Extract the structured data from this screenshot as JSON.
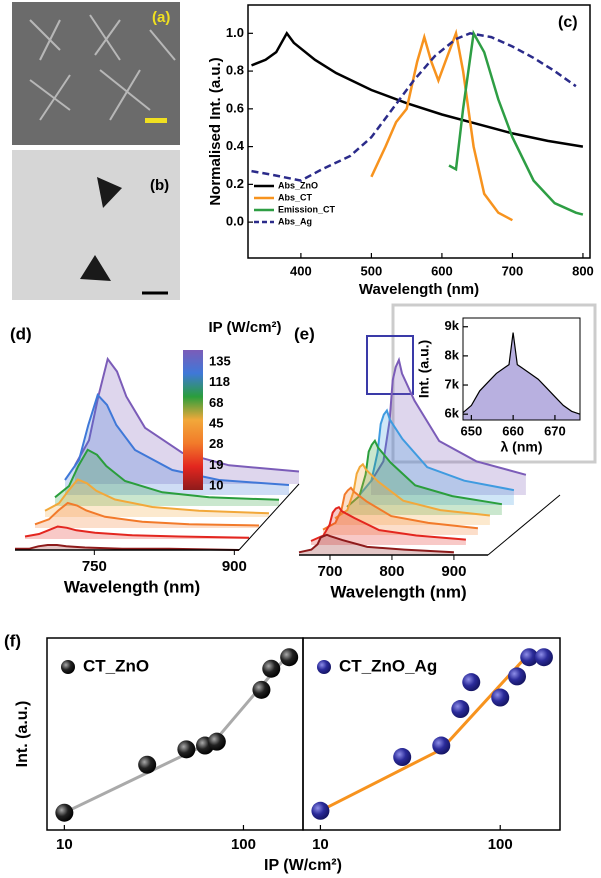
{
  "images": [
    {
      "label": "(a)"
    },
    {
      "label": "(b)"
    }
  ],
  "chart_data": [
    {
      "type": "line",
      "panel_label": "(c)",
      "xlabel": "Wavelength (nm)",
      "ylabel": "Normalised Int. (a.u.)",
      "xlim": [
        325,
        810
      ],
      "ylim": [
        -0.19,
        1.15
      ],
      "xticks": [
        400,
        500,
        600,
        700,
        800
      ],
      "yticks": [
        {
          "value": 0,
          "label": "0.0"
        },
        0.2,
        0.4,
        0.6,
        0.8,
        {
          "value": 1,
          "label": "1.0"
        }
      ],
      "legend": "lower left",
      "series": [
        {
          "name": "Abs_ZnO",
          "color": "#000000",
          "x": [
            330,
            350,
            365,
            380,
            390,
            420,
            450,
            500,
            550,
            600,
            650,
            700,
            750,
            800
          ],
          "values": [
            0.83,
            0.86,
            0.9,
            1.0,
            0.95,
            0.86,
            0.79,
            0.7,
            0.63,
            0.57,
            0.52,
            0.47,
            0.43,
            0.4
          ]
        },
        {
          "name": "Abs_CT",
          "color": "#f7931e",
          "x": [
            500,
            520,
            535,
            550,
            565,
            575,
            585,
            595,
            605,
            620,
            630,
            645,
            660,
            680,
            700
          ],
          "values": [
            0.24,
            0.4,
            0.53,
            0.6,
            0.85,
            0.98,
            0.85,
            0.75,
            0.85,
            1.0,
            0.8,
            0.4,
            0.15,
            0.05,
            0.01
          ]
        },
        {
          "name": "Emission_CT",
          "color": "#2e9e44",
          "x": [
            610,
            620,
            630,
            645,
            660,
            680,
            700,
            730,
            760,
            790,
            800
          ],
          "values": [
            0.3,
            0.28,
            0.6,
            1.0,
            0.9,
            0.65,
            0.45,
            0.22,
            0.1,
            0.05,
            0.04
          ]
        },
        {
          "name": "Abs_Ag",
          "color": "#2b2b8a",
          "dash": true,
          "x": [
            330,
            360,
            400,
            430,
            470,
            500,
            530,
            560,
            590,
            620,
            640,
            670,
            700,
            730,
            760,
            790
          ],
          "values": [
            0.27,
            0.25,
            0.22,
            0.28,
            0.35,
            0.45,
            0.6,
            0.75,
            0.88,
            0.97,
            1.0,
            0.98,
            0.93,
            0.87,
            0.8,
            0.72
          ]
        }
      ]
    },
    {
      "type": "waterfall",
      "panel_label": "(d)",
      "xlabel": "Wavelength (nm)",
      "colorbar_title": "IP (W/cm²)",
      "xlim": [
        665,
        905
      ],
      "xticks": [
        750,
        900
      ],
      "x": [
        665,
        680,
        690,
        700,
        710,
        720,
        740,
        780,
        830,
        905
      ],
      "series": [
        {
          "name": "135",
          "color": "#7b5cb8",
          "values": [
            0.15,
            0.35,
            0.7,
            1.0,
            0.9,
            0.7,
            0.45,
            0.25,
            0.15,
            0.1
          ]
        },
        {
          "name": "118",
          "color": "#3f78d8",
          "values": [
            0.12,
            0.28,
            0.56,
            0.8,
            0.72,
            0.56,
            0.36,
            0.2,
            0.12,
            0.08
          ]
        },
        {
          "name": "68",
          "color": "#2a9e3c",
          "values": [
            0.07,
            0.16,
            0.32,
            0.45,
            0.41,
            0.32,
            0.2,
            0.11,
            0.07,
            0.05
          ]
        },
        {
          "name": "45",
          "color": "#f2a83a",
          "values": [
            0.05,
            0.11,
            0.21,
            0.3,
            0.27,
            0.21,
            0.14,
            0.08,
            0.05,
            0.03
          ]
        },
        {
          "name": "28",
          "color": "#f27a2a",
          "values": [
            0.03,
            0.07,
            0.14,
            0.2,
            0.18,
            0.14,
            0.09,
            0.05,
            0.03,
            0.02
          ]
        },
        {
          "name": "19",
          "color": "#e3261f",
          "values": [
            0.02,
            0.04,
            0.07,
            0.1,
            0.09,
            0.07,
            0.05,
            0.03,
            0.02,
            0.01
          ]
        },
        {
          "name": "10",
          "color": "#8e1b1b",
          "values": [
            0.01,
            0.01,
            0.03,
            0.04,
            0.04,
            0.03,
            0.02,
            0.01,
            0.01,
            0
          ]
        }
      ]
    },
    {
      "type": "waterfall",
      "panel_label": "(e)",
      "xlabel": "Wavelength (nm)",
      "xlim": [
        650,
        955
      ],
      "xticks": [
        700,
        800,
        900
      ],
      "x": [
        650,
        670,
        680,
        685,
        690,
        695,
        700,
        720,
        760,
        820,
        900
      ],
      "series": [
        {
          "color": "#7b5cb8",
          "values": [
            0.1,
            0.25,
            0.55,
            0.85,
            0.95,
            1.0,
            0.9,
            0.7,
            0.4,
            0.25,
            0.15
          ]
        },
        {
          "color": "#3f9be0",
          "values": [
            0.07,
            0.18,
            0.39,
            0.6,
            0.67,
            0.7,
            0.63,
            0.49,
            0.28,
            0.18,
            0.11
          ]
        },
        {
          "color": "#2a9e3c",
          "values": [
            0.06,
            0.14,
            0.3,
            0.47,
            0.52,
            0.55,
            0.5,
            0.39,
            0.22,
            0.14,
            0.08
          ]
        },
        {
          "color": "#f2a83a",
          "values": [
            0.05,
            0.11,
            0.25,
            0.38,
            0.43,
            0.45,
            0.41,
            0.32,
            0.18,
            0.11,
            0.07
          ]
        },
        {
          "color": "#f27a2a",
          "values": [
            0.04,
            0.09,
            0.19,
            0.3,
            0.33,
            0.35,
            0.32,
            0.25,
            0.14,
            0.09,
            0.05
          ]
        },
        {
          "color": "#e3261f",
          "values": [
            0.03,
            0.07,
            0.15,
            0.24,
            0.27,
            0.28,
            0.25,
            0.2,
            0.11,
            0.07,
            0.04
          ]
        },
        {
          "color": "#8e1b1b",
          "values": [
            0.02,
            0.04,
            0.08,
            0.13,
            0.14,
            0.15,
            0.14,
            0.11,
            0.06,
            0.04,
            0.02
          ]
        }
      ]
    },
    {
      "type": "area",
      "xlabel": "λ (nm)",
      "ylabel": "Int. (a.u.)",
      "xlim": [
        648,
        676
      ],
      "ylim": [
        5800,
        9300
      ],
      "xticks": [
        650,
        660,
        670
      ],
      "yticks": [
        {
          "value": 6000,
          "label": "6k"
        },
        {
          "value": 7000,
          "label": "7k"
        },
        {
          "value": 8000,
          "label": "8k"
        },
        {
          "value": 9000,
          "label": "9k"
        }
      ],
      "color": "#b8b0e0",
      "x": [
        648,
        650,
        652,
        654,
        656,
        658,
        659,
        660,
        661,
        662,
        664,
        666,
        668,
        670,
        672,
        674,
        676
      ],
      "values": [
        6050,
        6300,
        6800,
        7100,
        7400,
        7600,
        7700,
        8800,
        7700,
        7600,
        7400,
        7200,
        6900,
        6600,
        6300,
        6100,
        6000
      ]
    },
    {
      "type": "scatter",
      "panel_label": "(f)",
      "xlabel": "IP (W/cm²)",
      "ylabel": "Int. (a.u.)",
      "xscale": "log",
      "xlim": [
        8,
        215
      ],
      "ylim": [
        0,
        1
      ],
      "xticks": [
        10,
        100
      ],
      "series": [
        {
          "name": "CT_ZnO",
          "color": "#111111",
          "x": [
            10,
            29,
            48,
            61,
            71,
            126,
            143,
            180
          ],
          "values": [
            0.09,
            0.34,
            0.42,
            0.44,
            0.46,
            0.73,
            0.84,
            0.9
          ]
        }
      ],
      "fit": {
        "color": "#aaaaaa",
        "x": [
          10,
          70,
          180
        ],
        "values": [
          0.09,
          0.47,
          0.92
        ]
      }
    },
    {
      "type": "scatter",
      "xscale": "log",
      "xlim": [
        8,
        215
      ],
      "ylim": [
        0,
        1
      ],
      "xticks": [
        10,
        100
      ],
      "series": [
        {
          "name": "CT_ZnO_Ag",
          "color": "#2b2b9a",
          "x": [
            10,
            28.5,
            47,
            60,
            69,
            100,
            124,
            145,
            175
          ],
          "values": [
            0.1,
            0.38,
            0.44,
            0.63,
            0.77,
            0.69,
            0.8,
            0.9,
            0.9
          ]
        }
      ],
      "fit": {
        "color": "#f7931e",
        "x": [
          10,
          47,
          124,
          145,
          180
        ],
        "values": [
          0.1,
          0.42,
          0.85,
          0.92,
          0.92
        ]
      }
    }
  ]
}
